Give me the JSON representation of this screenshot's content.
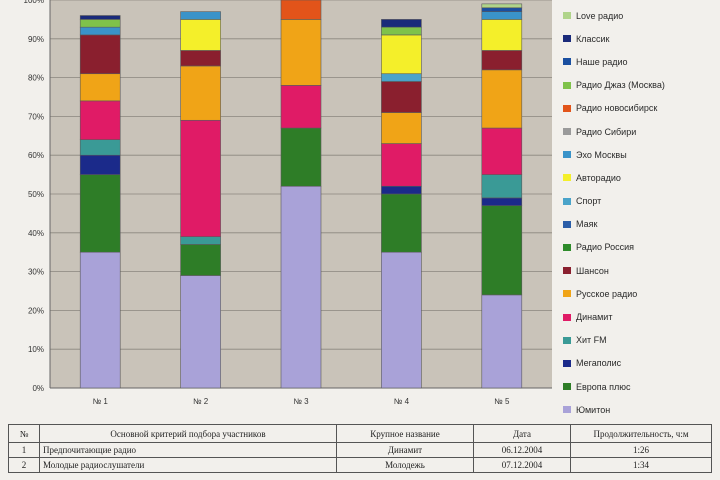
{
  "chart_data": {
    "type": "bar",
    "stacked": true,
    "categories": [
      "№ 1",
      "№ 2",
      "№ 3",
      "№ 4",
      "№ 5"
    ],
    "ylim": [
      0,
      100
    ],
    "yticks": [
      "0%",
      "10%",
      "20%",
      "30%",
      "40%",
      "50%",
      "60%",
      "70%",
      "80%",
      "90%",
      "100%"
    ],
    "grid": true,
    "legend_position": "right",
    "series": [
      {
        "name": "Юмитон",
        "color": "#a9a2d8",
        "values": [
          35,
          29,
          52,
          35,
          24
        ]
      },
      {
        "name": "Европа плюс",
        "color": "#2e7d27",
        "values": [
          20,
          8,
          15,
          15,
          23
        ]
      },
      {
        "name": "Мегаполис",
        "color": "#1b2a8a",
        "values": [
          5,
          0,
          0,
          2,
          2
        ]
      },
      {
        "name": "Хит FM",
        "color": "#3a9a96",
        "values": [
          4,
          2,
          0,
          0,
          6
        ]
      },
      {
        "name": "Динамит",
        "color": "#e01b66",
        "values": [
          10,
          30,
          11,
          11,
          12
        ]
      },
      {
        "name": "Русское радио",
        "color": "#f0a417",
        "values": [
          7,
          14,
          17,
          8,
          15
        ]
      },
      {
        "name": "Шансон",
        "color": "#8a1f2e",
        "values": [
          10,
          4,
          0,
          8,
          5
        ]
      },
      {
        "name": "Радио Россия",
        "color": "#2e8b2a",
        "values": [
          0,
          0,
          0,
          0,
          0
        ]
      },
      {
        "name": "Маяк",
        "color": "#2b5ea8",
        "values": [
          0,
          0,
          0,
          0,
          0
        ]
      },
      {
        "name": "Спорт",
        "color": "#4aa3c9",
        "values": [
          0,
          0,
          0,
          2,
          0
        ]
      },
      {
        "name": "Авторадио",
        "color": "#f4ef2a",
        "values": [
          0,
          8,
          0,
          10,
          8
        ]
      },
      {
        "name": "Эхо Москвы",
        "color": "#3a93c9",
        "values": [
          2,
          2,
          0,
          0,
          2
        ]
      },
      {
        "name": "Радио Сибири",
        "color": "#9a9a9a",
        "values": [
          0,
          0,
          0,
          0,
          0
        ]
      },
      {
        "name": "Радио новосибирск",
        "color": "#e2541a",
        "values": [
          0,
          0,
          5,
          0,
          0
        ]
      },
      {
        "name": "Радио Джаз (Москва)",
        "color": "#7fc24a",
        "values": [
          2,
          0,
          0,
          2,
          0
        ]
      },
      {
        "name": "Наше радио",
        "color": "#1a4fa0",
        "values": [
          0,
          0,
          0,
          0,
          1
        ]
      },
      {
        "name": "Классик",
        "color": "#1a2a7a",
        "values": [
          1,
          0,
          0,
          2,
          0
        ]
      },
      {
        "name": "Love радио",
        "color": "#b0d48a",
        "values": [
          0,
          0,
          0,
          0,
          1
        ]
      }
    ],
    "legend_order": [
      "Love радио",
      "Классик",
      "Наше радио",
      "Радио Джаз (Москва)",
      "Радио новосибирск",
      "Радио Сибири",
      "Эхо Москвы",
      "Авторадио",
      "Спорт",
      "Маяк",
      "Радио Россия",
      "Шансон",
      "Русское радио",
      "Динамит",
      "Хит FM",
      "Мегаполис",
      "Европа плюс",
      "Юмитон"
    ]
  },
  "table": {
    "headers": [
      "№",
      "Основной критерий подбора участников",
      "Крупное название",
      "Дата",
      "Продолжительность, ч:м"
    ],
    "rows": [
      [
        "1",
        "Предпочитающие радио",
        "Динамит",
        "06.12.2004",
        "1:26"
      ],
      [
        "2",
        "Молодые радиослушатели",
        "Молодежь",
        "07.12.2004",
        "1:34"
      ]
    ]
  }
}
